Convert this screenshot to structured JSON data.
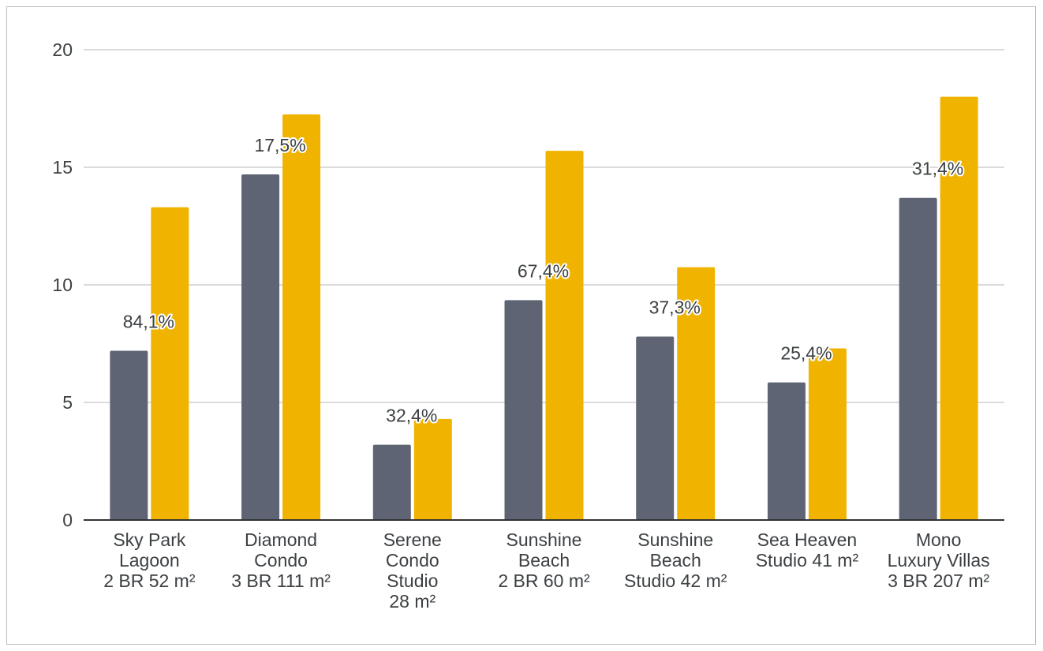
{
  "chart_data": {
    "type": "bar",
    "categories": [
      [
        "Sky Park",
        "Lagoon",
        "2 BR 52 m²"
      ],
      [
        "Diamond",
        "Condo",
        "3 BR 111 m²"
      ],
      [
        "Serene",
        "Condo",
        "Studio",
        "28 m²"
      ],
      [
        "Sunshine",
        "Beach",
        "2 BR 60 m²"
      ],
      [
        "Sunshine",
        "Beach",
        "Studio 42 m²"
      ],
      [
        "Sea Heaven",
        "Studio 41 m²"
      ],
      [
        "Mono",
        "Luxury Villas",
        "3 BR 207 m²"
      ]
    ],
    "series": [
      {
        "color": "#5f6474",
        "values": [
          7.2,
          14.7,
          3.2,
          9.35,
          7.8,
          5.85,
          13.7
        ]
      },
      {
        "color": "#f0b400",
        "values": [
          13.3,
          17.25,
          4.3,
          15.7,
          10.75,
          7.3,
          18.0
        ]
      }
    ],
    "data_labels": [
      "84,1%",
      "17,5%",
      "32,4%",
      "67,4%",
      "37,3%",
      "25,4%",
      "31,4%"
    ],
    "y_ticks": [
      0,
      5,
      10,
      15,
      20
    ],
    "ylim": [
      0,
      20
    ],
    "grid": true,
    "legend": "none",
    "title": "",
    "xlabel": "",
    "ylabel": ""
  }
}
